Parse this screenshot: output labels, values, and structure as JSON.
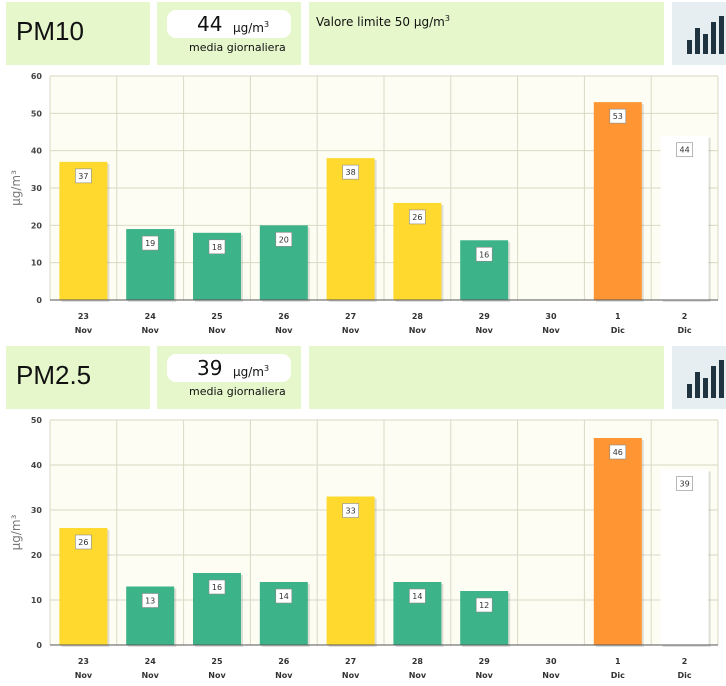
{
  "panels": [
    {
      "pollutant": "PM10",
      "average_value": "44",
      "average_unit": "µg/m",
      "average_unit_exp": "3",
      "average_label": "media giornaliera",
      "limit_text": "Valore limite 50 µg/m",
      "limit_exp": "3",
      "icon": "bar-chart-icon"
    },
    {
      "pollutant": "PM2.5",
      "average_value": "39",
      "average_unit": "µg/m",
      "average_unit_exp": "3",
      "average_label": "media giornaliera",
      "limit_text": "",
      "limit_exp": "",
      "icon": "bar-chart-icon"
    }
  ],
  "colors": {
    "header_bg": "#e6f7cc",
    "good": "#3db38a",
    "moderate": "#ffd92e",
    "high": "#ff9533",
    "partial": "#ffffff",
    "grid": "#d9d9c4",
    "plot_bg": "#fdfdf3",
    "icon_bars": "#1f3440",
    "icon_bg": "#e6eef2"
  },
  "chart_data": [
    {
      "type": "bar",
      "title": "PM10",
      "ylabel": "µg/m³",
      "xlabel": "",
      "ylim": [
        0,
        60
      ],
      "yticks": [
        0,
        10,
        20,
        30,
        40,
        50,
        60
      ],
      "grid": true,
      "categories": [
        [
          "23",
          "Nov"
        ],
        [
          "24",
          "Nov"
        ],
        [
          "25",
          "Nov"
        ],
        [
          "26",
          "Nov"
        ],
        [
          "27",
          "Nov"
        ],
        [
          "28",
          "Nov"
        ],
        [
          "29",
          "Nov"
        ],
        [
          "30",
          "Nov"
        ],
        [
          "1",
          "Dic"
        ],
        [
          "2",
          "Dic"
        ]
      ],
      "values": [
        37,
        19,
        18,
        20,
        38,
        26,
        16,
        null,
        53,
        44
      ],
      "levels": [
        "moderate",
        "good",
        "good",
        "good",
        "moderate",
        "moderate",
        "good",
        null,
        "high",
        "partial"
      ]
    },
    {
      "type": "bar",
      "title": "PM2.5",
      "ylabel": "µg/m³",
      "xlabel": "",
      "ylim": [
        0,
        50
      ],
      "yticks": [
        0,
        10,
        20,
        30,
        40,
        50
      ],
      "grid": true,
      "categories": [
        [
          "23",
          "Nov"
        ],
        [
          "24",
          "Nov"
        ],
        [
          "25",
          "Nov"
        ],
        [
          "26",
          "Nov"
        ],
        [
          "27",
          "Nov"
        ],
        [
          "28",
          "Nov"
        ],
        [
          "29",
          "Nov"
        ],
        [
          "30",
          "Nov"
        ],
        [
          "1",
          "Dic"
        ],
        [
          "2",
          "Dic"
        ]
      ],
      "values": [
        26,
        13,
        16,
        14,
        33,
        14,
        12,
        null,
        46,
        39
      ],
      "levels": [
        "moderate",
        "good",
        "good",
        "good",
        "moderate",
        "good",
        "good",
        null,
        "high",
        "partial"
      ]
    }
  ]
}
